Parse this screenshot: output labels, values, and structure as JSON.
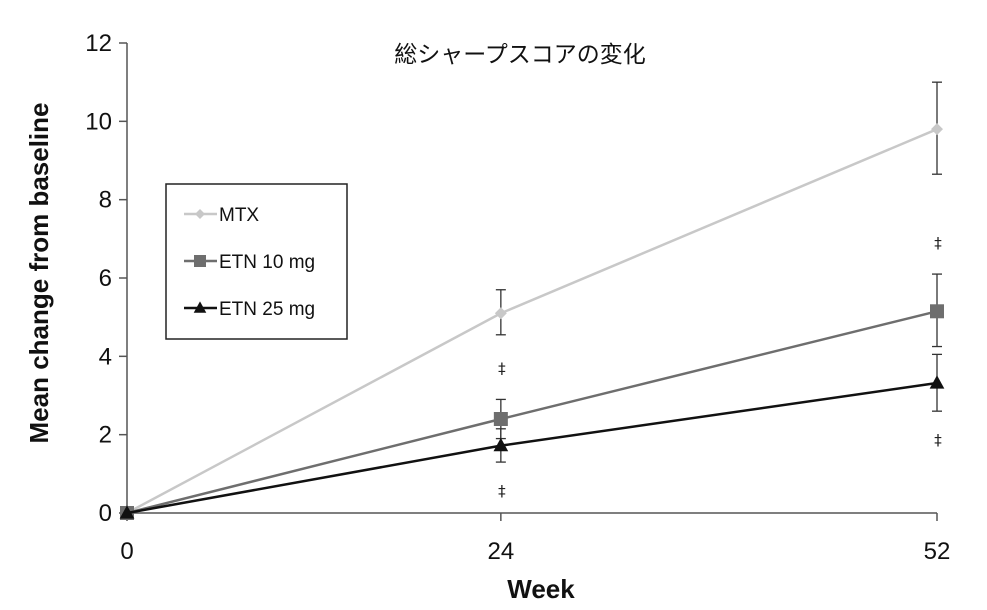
{
  "chart_data": {
    "type": "line",
    "title": "総シャープスコアの変化",
    "xlabel": "Week",
    "ylabel": "Mean change from baseline",
    "x": [
      0,
      24,
      52
    ],
    "xticks": [
      "0",
      "24",
      "52"
    ],
    "ylim": [
      0,
      12
    ],
    "yticks": [
      "0",
      "2",
      "4",
      "6",
      "8",
      "10",
      "12"
    ],
    "grid": false,
    "legend_position": "left",
    "series": [
      {
        "name": "MTX",
        "color": "#c8c8c8",
        "marker": "diamond",
        "values": [
          0,
          5.1,
          9.8
        ],
        "err_low": [
          0,
          4.55,
          8.65
        ],
        "err_high": [
          0,
          5.7,
          11.0
        ],
        "sig": [
          "",
          "",
          ""
        ]
      },
      {
        "name": "ETN 10 mg",
        "color": "#6e6e6e",
        "marker": "square",
        "values": [
          0,
          2.4,
          5.15
        ],
        "err_low": [
          0,
          1.9,
          4.25
        ],
        "err_high": [
          0,
          2.9,
          6.1
        ],
        "sig": [
          "",
          "‡",
          "‡"
        ]
      },
      {
        "name": "ETN 25 mg",
        "color": "#111111",
        "marker": "triangle",
        "values": [
          0,
          1.72,
          3.32
        ],
        "err_low": [
          0,
          1.3,
          2.6
        ],
        "err_high": [
          0,
          2.15,
          4.05
        ],
        "sig": [
          "",
          "‡",
          "‡"
        ]
      }
    ]
  }
}
